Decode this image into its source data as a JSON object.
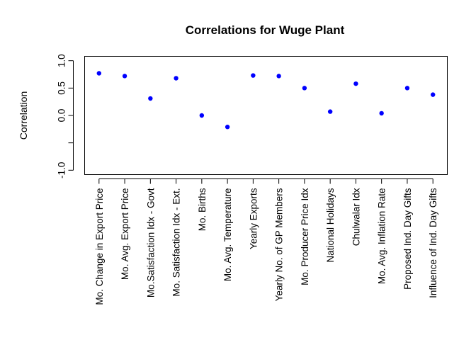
{
  "chart_data": {
    "type": "scatter",
    "title": "Correlations for Wuge Plant",
    "xlabel": "",
    "ylabel": "Correlation",
    "ylim": [
      -1.08,
      1.08
    ],
    "yticks": [
      -1.0,
      -0.5,
      0.0,
      0.5,
      1.0
    ],
    "ytick_labels": [
      "-1.0",
      "",
      "0.0",
      "0.5",
      "1.0"
    ],
    "grid": false,
    "legend": "none",
    "point_color": "#0000ff",
    "categories": [
      "Mo. Change in Export Price",
      "Mo. Avg. Export Price",
      "Mo.Satisfaction Idx - Govt",
      "Mo. Satisfaction Idx - Ext.",
      "Mo. Births",
      "Mo. Avg. Temperature",
      "Yearly Exports",
      "Yearly No. of GP Members",
      "Mo. Producer Price Idx",
      "National Holidays",
      "Chulwalar Idx",
      "Mo. Avg. Inflation Rate",
      "Proposed Ind. Day Gifts",
      "Influence of Ind. Day Gifts"
    ],
    "values": [
      0.77,
      0.72,
      0.31,
      0.68,
      0.0,
      -0.21,
      0.73,
      0.72,
      0.5,
      0.07,
      0.58,
      0.04,
      0.5,
      0.38
    ]
  }
}
